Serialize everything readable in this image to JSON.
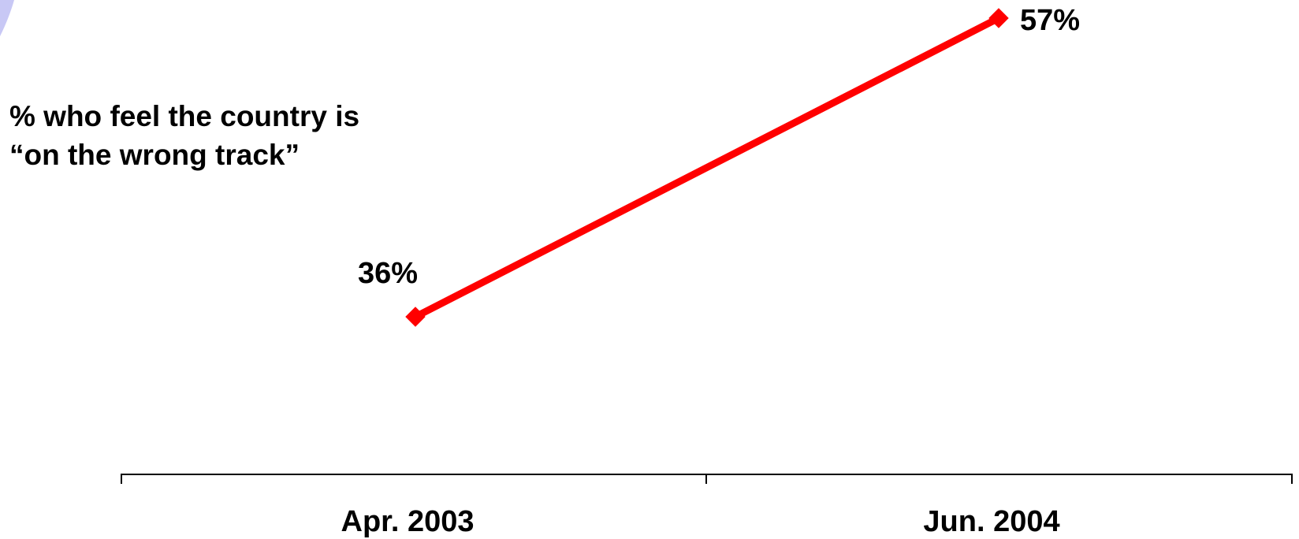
{
  "chart_data": {
    "type": "line",
    "title_lines": [
      "% who feel the country is",
      "“on the wrong track”"
    ],
    "categories": [
      "Apr. 2003",
      "Jun. 2004"
    ],
    "series": [
      {
        "values": [
          36,
          57
        ],
        "labels": [
          "36%",
          "57%"
        ],
        "color": "#ff0000",
        "marker": "diamond"
      }
    ],
    "xlabel": "",
    "ylabel": "",
    "grid": false,
    "legend": "none"
  },
  "colors": {
    "decoration": "#c8c8f5"
  }
}
